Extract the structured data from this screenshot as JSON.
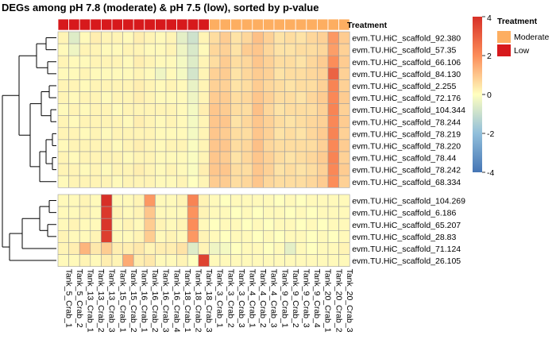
{
  "chart_data": {
    "type": "heatmap",
    "title": "DEGs among pH 7.8 (moderate) & pH 7.5 (low), sorted by p-value",
    "columns": [
      "Tank_5_Crab_1",
      "Tank_5_Crab_2",
      "Tank_13_Crab_1",
      "Tank_13_Crab_2",
      "Tank_13_Crab_3",
      "Tank_15_Crab_1",
      "Tank_15_Crab_2",
      "Tank_16_Crab_1",
      "Tank_16_Crab_2",
      "Tank_16_Crab_3",
      "Tank_16_Crab_4",
      "Tank_18_Crab_1",
      "Tank_18_Crab_2",
      "Tank_18_Crab_3",
      "Tank_3_Crab_1",
      "Tank_3_Crab_2",
      "Tank_3_Crab_3",
      "Tank_4_Crab_1",
      "Tank_4_Crab_2",
      "Tank_4_Crab_3",
      "Tank_9_Crab_1",
      "Tank_9_Crab_2",
      "Tank_9_Crab_3",
      "Tank_9_Crab_4",
      "Tank_20_Crab_1",
      "Tank_20_Crab_2",
      "Tank_20_Crab_3"
    ],
    "column_treatment": [
      "Low",
      "Low",
      "Low",
      "Low",
      "Low",
      "Low",
      "Low",
      "Low",
      "Low",
      "Low",
      "Low",
      "Low",
      "Low",
      "Low",
      "Moderate",
      "Moderate",
      "Moderate",
      "Moderate",
      "Moderate",
      "Moderate",
      "Moderate",
      "Moderate",
      "Moderate",
      "Moderate",
      "Moderate",
      "Moderate",
      "Moderate"
    ],
    "rows": [
      "evm.TU.HiC_scaffold_92.380",
      "evm.TU.HiC_scaffold_57.35",
      "evm.TU.HiC_scaffold_66.106",
      "evm.TU.HiC_scaffold_84.130",
      "evm.TU.HiC_scaffold_2.255",
      "evm.TU.HiC_scaffold_72.176",
      "evm.TU.HiC_scaffold_104.344",
      "evm.TU.HiC_scaffold_78.244",
      "evm.TU.HiC_scaffold_78.219",
      "evm.TU.HiC_scaffold_78.220",
      "evm.TU.HiC_scaffold_78.44",
      "evm.TU.HiC_scaffold_78.242",
      "evm.TU.HiC_scaffold_68.334",
      "evm.TU.HiC_scaffold_104.269",
      "evm.TU.HiC_scaffold_6.186",
      "evm.TU.HiC_scaffold_65.207",
      "evm.TU.HiC_scaffold_28.83",
      "evm.TU.HiC_scaffold_71.124",
      "evm.TU.HiC_scaffold_26.105"
    ],
    "row_groups": [
      13,
      6
    ],
    "values": [
      [
        0.2,
        -0.6,
        0.1,
        0.3,
        0.2,
        0.2,
        0.1,
        0.3,
        0.2,
        0.1,
        0.2,
        -0.5,
        -0.9,
        0.2,
        0.6,
        0.9,
        0.5,
        0.7,
        1.1,
        0.8,
        0.5,
        0.6,
        0.5,
        0.7,
        0.8,
        1.8,
        0.9
      ],
      [
        0.1,
        -0.3,
        0.2,
        0.2,
        0.1,
        0.1,
        0.2,
        0.2,
        0.1,
        0.1,
        0.2,
        -0.3,
        -0.7,
        0.1,
        0.7,
        0.8,
        0.5,
        0.9,
        1.0,
        0.7,
        0.5,
        0.5,
        0.6,
        0.6,
        0.7,
        1.7,
        0.8
      ],
      [
        0.2,
        0.1,
        0.1,
        0.2,
        0.2,
        0.2,
        0.1,
        0.3,
        0.2,
        0.1,
        0.1,
        -0.2,
        -0.6,
        0.2,
        0.6,
        0.9,
        0.6,
        0.7,
        1.0,
        0.8,
        0.6,
        0.6,
        0.5,
        0.7,
        0.9,
        2.0,
        0.9
      ],
      [
        0.1,
        0.1,
        0.2,
        0.1,
        0.1,
        0.1,
        0.1,
        0.2,
        0.1,
        -0.3,
        0.1,
        -0.2,
        -0.8,
        0.2,
        0.8,
        0.9,
        0.5,
        0.7,
        0.9,
        0.8,
        0.5,
        0.6,
        0.6,
        0.7,
        0.8,
        2.9,
        0.8
      ],
      [
        0.2,
        0.2,
        0.1,
        0.2,
        0.2,
        0.2,
        0.2,
        0.3,
        0.2,
        0.1,
        0.2,
        0.1,
        -0.4,
        0.2,
        0.8,
        0.8,
        0.5,
        0.6,
        0.9,
        0.7,
        0.6,
        0.5,
        0.6,
        0.6,
        0.8,
        2.2,
        0.8
      ],
      [
        0.2,
        0.1,
        0.2,
        0.2,
        0.1,
        0.2,
        0.2,
        0.3,
        0.2,
        0.1,
        0.1,
        0.1,
        -0.3,
        0.2,
        0.9,
        0.9,
        0.6,
        0.7,
        1.0,
        0.8,
        0.6,
        0.6,
        0.5,
        0.7,
        0.9,
        2.1,
        0.9
      ],
      [
        0.1,
        0.2,
        0.1,
        0.2,
        0.2,
        0.1,
        0.2,
        0.2,
        0.2,
        0.2,
        0.2,
        0.1,
        -0.2,
        0.3,
        1.0,
        0.9,
        0.6,
        0.6,
        1.1,
        0.7,
        0.5,
        0.6,
        0.6,
        0.6,
        0.8,
        2.2,
        0.8
      ],
      [
        0.2,
        0.1,
        0.2,
        0.2,
        0.2,
        0.2,
        0.1,
        0.3,
        0.2,
        0.1,
        0.2,
        0.1,
        -0.2,
        0.2,
        1.0,
        1.0,
        0.5,
        0.7,
        1.0,
        0.8,
        0.6,
        0.5,
        0.6,
        0.7,
        0.8,
        2.1,
        0.9
      ],
      [
        0.2,
        0.2,
        0.1,
        0.2,
        0.1,
        0.2,
        0.2,
        0.2,
        0.2,
        0.1,
        0.1,
        0.1,
        -0.2,
        0.2,
        1.0,
        0.9,
        0.6,
        0.6,
        1.0,
        0.8,
        0.5,
        0.6,
        0.5,
        0.7,
        0.9,
        2.2,
        0.8
      ],
      [
        0.1,
        0.2,
        0.2,
        0.2,
        0.2,
        0.1,
        0.2,
        0.3,
        0.2,
        0.1,
        0.2,
        0.2,
        -0.1,
        0.2,
        1.0,
        1.0,
        0.6,
        0.7,
        1.1,
        0.7,
        0.6,
        0.6,
        0.6,
        0.6,
        0.8,
        2.1,
        0.9
      ],
      [
        0.2,
        0.1,
        0.2,
        0.2,
        0.2,
        0.2,
        0.1,
        0.2,
        0.2,
        0.1,
        0.1,
        0.1,
        -0.1,
        0.2,
        1.0,
        0.9,
        0.5,
        0.7,
        1.0,
        0.8,
        0.6,
        0.5,
        0.6,
        0.7,
        0.9,
        2.2,
        0.8
      ],
      [
        0.2,
        0.2,
        0.1,
        0.2,
        0.1,
        0.2,
        0.2,
        0.3,
        0.2,
        0.1,
        0.2,
        0.1,
        -0.1,
        0.3,
        1.0,
        1.0,
        0.6,
        0.6,
        1.0,
        0.8,
        0.5,
        0.6,
        0.5,
        0.6,
        0.8,
        2.1,
        0.9
      ],
      [
        0.1,
        0.2,
        0.2,
        0.2,
        0.2,
        0.1,
        0.2,
        0.2,
        0.2,
        0.1,
        0.1,
        0.2,
        0.0,
        0.2,
        0.9,
        0.9,
        0.6,
        0.7,
        1.0,
        0.7,
        0.6,
        0.6,
        0.6,
        0.7,
        0.9,
        2.0,
        0.8
      ],
      [
        0.1,
        0.1,
        0.2,
        0.1,
        4.0,
        0.1,
        0.1,
        0.2,
        1.8,
        0.1,
        0.1,
        0.2,
        2.2,
        0.2,
        0.1,
        0.0,
        0.1,
        0.1,
        0.1,
        0.1,
        0.0,
        0.1,
        0.0,
        0.1,
        0.1,
        0.1,
        0.1
      ],
      [
        0.1,
        0.1,
        0.2,
        0.1,
        3.8,
        0.2,
        0.1,
        0.2,
        1.0,
        0.1,
        0.1,
        0.1,
        1.9,
        0.2,
        0.1,
        0.1,
        0.0,
        0.1,
        0.0,
        0.1,
        0.1,
        0.0,
        0.1,
        0.0,
        0.1,
        0.1,
        0.1
      ],
      [
        0.1,
        0.2,
        0.1,
        0.1,
        3.9,
        0.1,
        0.2,
        0.1,
        0.9,
        0.2,
        0.1,
        0.2,
        2.0,
        0.1,
        0.0,
        0.1,
        0.1,
        0.0,
        0.1,
        0.0,
        0.1,
        0.1,
        0.0,
        0.1,
        0.0,
        0.1,
        0.1
      ],
      [
        0.2,
        0.1,
        0.1,
        0.2,
        3.7,
        0.1,
        0.1,
        0.2,
        0.9,
        0.1,
        0.2,
        0.1,
        1.8,
        0.2,
        0.1,
        0.0,
        0.1,
        0.1,
        0.0,
        0.1,
        0.0,
        0.1,
        0.1,
        0.0,
        0.1,
        0.0,
        0.1
      ],
      [
        0.2,
        0.3,
        1.3,
        0.4,
        0.9,
        0.3,
        0.3,
        0.4,
        0.2,
        0.3,
        0.3,
        0.5,
        -0.6,
        0.2,
        -0.3,
        -0.2,
        0.0,
        0.1,
        0.1,
        0.0,
        0.1,
        -0.5,
        0.1,
        0.0,
        0.1,
        0.1,
        0.2
      ],
      [
        0.1,
        0.1,
        0.2,
        0.1,
        0.3,
        0.2,
        1.5,
        0.3,
        0.4,
        0.1,
        0.1,
        0.2,
        0.0,
        3.6,
        0.1,
        0.1,
        0.1,
        0.1,
        0.1,
        0.1,
        0.1,
        0.1,
        0.1,
        0.1,
        0.1,
        0.1,
        0.1
      ]
    ],
    "color_scale": {
      "min": -4,
      "max": 4,
      "ticks": [
        -4,
        -2,
        0,
        2,
        4
      ],
      "low_color": "#4575b4",
      "mid_color": "#ffffbf",
      "high_color": "#d73027"
    },
    "annotation": {
      "title": "Treatment",
      "levels": [
        {
          "label": "Moderate",
          "color": "#fdae61"
        },
        {
          "label": "Low",
          "color": "#d7191c"
        }
      ]
    }
  }
}
